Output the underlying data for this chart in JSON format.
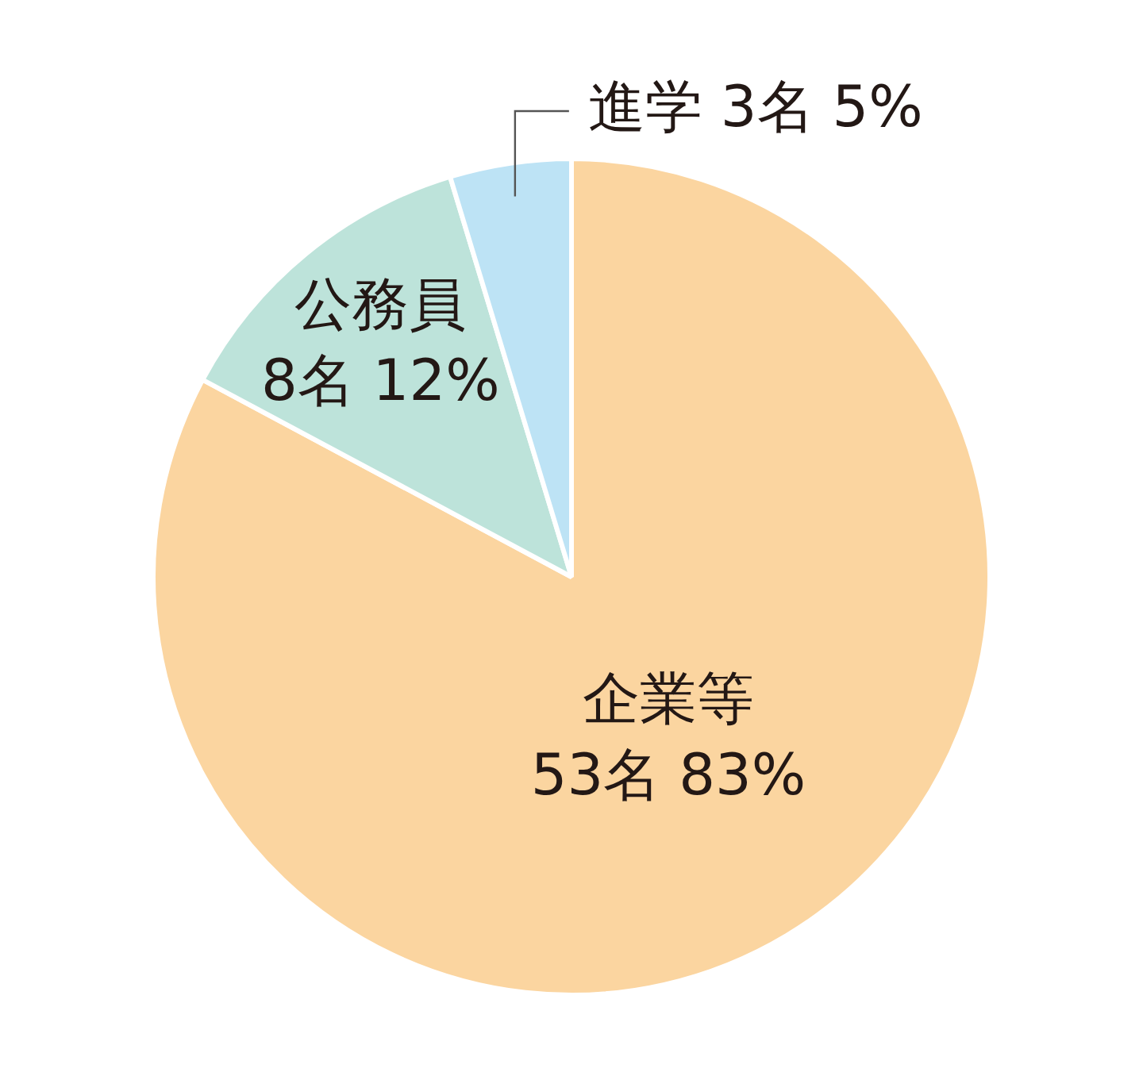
{
  "chart_data": {
    "type": "pie",
    "categories": [
      "企業等",
      "公務員",
      "進学"
    ],
    "values": [
      53,
      8,
      3
    ],
    "value_labels": [
      "53名 83%",
      "8名 12%",
      "3名 5%"
    ],
    "colors": [
      "#fbd5a0",
      "#bde3da",
      "#bde3f5"
    ],
    "legend": false
  }
}
